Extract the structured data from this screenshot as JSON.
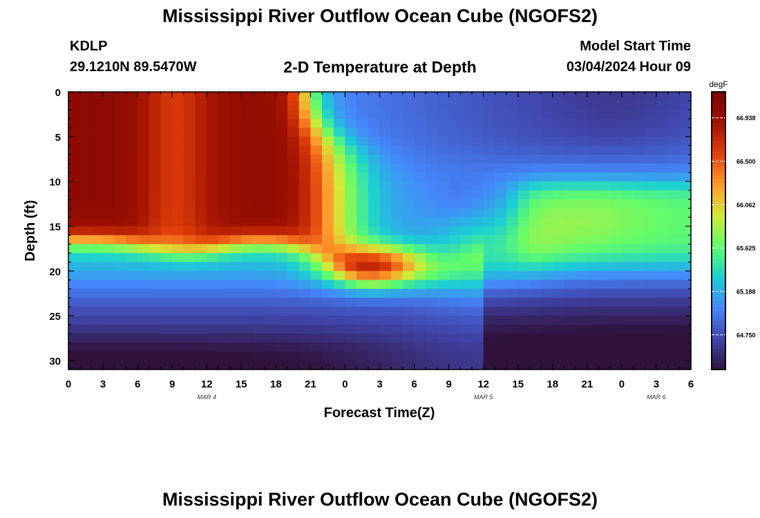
{
  "page": {
    "title": "Mississippi River Outflow Ocean Cube (NGOFS2)",
    "station": "KDLP",
    "coordinates": "29.1210N  89.5470W",
    "subtitle": "2-D Temperature at Depth",
    "model_start_label": "Model Start Time",
    "model_start_value": "03/04/2024 Hour 09",
    "bottom_title": "Mississippi River Outflow Ocean Cube (NGOFS2)"
  },
  "chart_data": {
    "type": "heatmap",
    "title": "2-D Temperature at Depth",
    "xlabel": "Forecast Time(Z)",
    "ylabel": "Depth (ft)",
    "x_ticks": [
      "0",
      "3",
      "6",
      "9",
      "12",
      "15",
      "18",
      "21",
      "0",
      "3",
      "6",
      "9",
      "12",
      "15",
      "18",
      "21",
      "0",
      "3",
      "6"
    ],
    "x_range_hours": [
      0,
      54
    ],
    "date_labels": [
      {
        "text": "MAR 4",
        "hour": 12
      },
      {
        "text": "MAR 5",
        "hour": 36
      },
      {
        "text": "MAR 6",
        "hour": 51
      }
    ],
    "y_ticks": [
      "0",
      "5",
      "10",
      "15",
      "20",
      "25",
      "30"
    ],
    "y_range_ft": [
      0,
      31
    ],
    "colorbar": {
      "unit": "degF",
      "min": 64.4,
      "max": 67.2,
      "tick_values": [
        64.75,
        65.188,
        65.625,
        66.062,
        66.5,
        66.938
      ],
      "tick_labels": [
        "64.750",
        "65.188",
        "65.625",
        "66.062",
        "66.500",
        "66.938"
      ],
      "colors": [
        "#30123b",
        "#4146ac",
        "#4686fb",
        "#1bcfd4",
        "#61fc6c",
        "#d2e935",
        "#fe9b2d",
        "#e2400a",
        "#a11201",
        "#7a0403"
      ]
    },
    "temperature_model": {
      "grid_hours_step": 1,
      "grid_depth_step_ft": 1,
      "description": "Warm layer (~67F) near surface hours 0-18, thermocline near 16-18 ft rising to ~22 ft at hours 23-34, cooler ~65F water column after hour 20, warm ~65.8F band 11-19 ft after hour 39, cold bottom (~64.4F) below 27 ft"
    }
  }
}
